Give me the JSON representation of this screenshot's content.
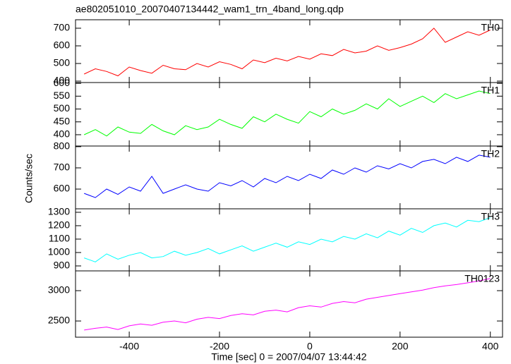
{
  "chart_data": [
    {
      "type": "line",
      "title": "ae802051010_20070407134442_wam1_trn_4band_long.qdp",
      "x": [
        -500,
        -475,
        -450,
        -425,
        -400,
        -375,
        -350,
        -325,
        -300,
        -275,
        -250,
        -225,
        -200,
        -175,
        -150,
        -125,
        -100,
        -75,
        -50,
        -25,
        0,
        25,
        50,
        75,
        100,
        125,
        150,
        175,
        200,
        225,
        250,
        275,
        300,
        325,
        350,
        375,
        400
      ],
      "series": [
        {
          "name": "TH0",
          "color": "#ff0000",
          "values": [
            440,
            470,
            455,
            430,
            480,
            460,
            445,
            490,
            470,
            465,
            500,
            480,
            510,
            495,
            470,
            520,
            505,
            530,
            515,
            540,
            525,
            555,
            545,
            580,
            560,
            570,
            600,
            575,
            590,
            610,
            640,
            700,
            620,
            650,
            680,
            660,
            690
          ]
        }
      ],
      "xlim": [
        -519,
        427
      ],
      "ylim": [
        392,
        748
      ],
      "yticks": [
        400,
        500,
        600,
        700
      ]
    },
    {
      "type": "line",
      "x": [
        -500,
        -475,
        -450,
        -425,
        -400,
        -375,
        -350,
        -325,
        -300,
        -275,
        -250,
        -225,
        -200,
        -175,
        -150,
        -125,
        -100,
        -75,
        -50,
        -25,
        0,
        25,
        50,
        75,
        100,
        125,
        150,
        175,
        200,
        225,
        250,
        275,
        300,
        325,
        350,
        375,
        400
      ],
      "series": [
        {
          "name": "TH1",
          "color": "#00ff00",
          "values": [
            400,
            420,
            395,
            430,
            410,
            405,
            440,
            415,
            400,
            435,
            420,
            430,
            460,
            440,
            425,
            470,
            450,
            480,
            460,
            445,
            490,
            470,
            500,
            480,
            495,
            520,
            500,
            540,
            510,
            530,
            550,
            525,
            560,
            540,
            555,
            570,
            560
          ]
        }
      ],
      "xlim": [
        -519,
        427
      ],
      "ylim": [
        356,
        603
      ],
      "yticks": [
        400,
        450,
        500,
        550,
        600
      ]
    },
    {
      "type": "line",
      "ylabel": "Counts/sec",
      "x": [
        -500,
        -475,
        -450,
        -425,
        -400,
        -375,
        -350,
        -325,
        -300,
        -275,
        -250,
        -225,
        -200,
        -175,
        -150,
        -125,
        -100,
        -75,
        -50,
        -25,
        0,
        25,
        50,
        75,
        100,
        125,
        150,
        175,
        200,
        225,
        250,
        275,
        300,
        325,
        350,
        375,
        400
      ],
      "series": [
        {
          "name": "TH2",
          "color": "#0000ff",
          "values": [
            580,
            560,
            600,
            575,
            610,
            590,
            660,
            580,
            600,
            620,
            600,
            590,
            630,
            615,
            640,
            610,
            650,
            630,
            660,
            640,
            670,
            650,
            690,
            670,
            700,
            680,
            710,
            695,
            720,
            700,
            730,
            740,
            720,
            750,
            730,
            760,
            750
          ]
        }
      ],
      "xlim": [
        -519,
        427
      ],
      "ylim": [
        507,
        803
      ],
      "yticks": [
        600,
        700,
        800
      ]
    },
    {
      "type": "line",
      "x": [
        -500,
        -475,
        -450,
        -425,
        -400,
        -375,
        -350,
        -325,
        -300,
        -275,
        -250,
        -225,
        -200,
        -175,
        -150,
        -125,
        -100,
        -75,
        -50,
        -25,
        0,
        25,
        50,
        75,
        100,
        125,
        150,
        175,
        200,
        225,
        250,
        275,
        300,
        325,
        350,
        375,
        400
      ],
      "series": [
        {
          "name": "TH3",
          "color": "#00ffff",
          "values": [
            960,
            930,
            990,
            950,
            980,
            1000,
            960,
            970,
            1010,
            980,
            1000,
            1030,
            990,
            1020,
            1050,
            1010,
            1040,
            1070,
            1040,
            1080,
            1060,
            1100,
            1080,
            1120,
            1100,
            1140,
            1110,
            1160,
            1130,
            1180,
            1150,
            1200,
            1220,
            1190,
            1240,
            1230,
            1260
          ]
        }
      ],
      "xlim": [
        -519,
        427
      ],
      "ylim": [
        863,
        1326
      ],
      "yticks": [
        900,
        1000,
        1100,
        1200,
        1300
      ]
    },
    {
      "type": "line",
      "xlabel": "Time [sec] 0 = 2007/04/07 13:44:42",
      "x": [
        -500,
        -475,
        -450,
        -425,
        -400,
        -375,
        -350,
        -325,
        -300,
        -275,
        -250,
        -225,
        -200,
        -175,
        -150,
        -125,
        -100,
        -75,
        -50,
        -25,
        0,
        25,
        50,
        75,
        100,
        125,
        150,
        175,
        200,
        225,
        250,
        275,
        300,
        325,
        350,
        375,
        400
      ],
      "series": [
        {
          "name": "TH0123",
          "color": "#ff00ff",
          "values": [
            2350,
            2380,
            2400,
            2360,
            2420,
            2450,
            2430,
            2480,
            2500,
            2470,
            2530,
            2560,
            2540,
            2590,
            2620,
            2600,
            2660,
            2680,
            2650,
            2720,
            2750,
            2730,
            2790,
            2820,
            2800,
            2860,
            2890,
            2920,
            2950,
            2980,
            3010,
            3050,
            3080,
            3100,
            3130,
            3160,
            3200
          ]
        }
      ],
      "xlim": [
        -519,
        427
      ],
      "ylim": [
        2233,
        3326
      ],
      "yticks": [
        2500,
        3000
      ],
      "xticks": [
        -400,
        -200,
        0,
        200,
        400
      ]
    }
  ]
}
